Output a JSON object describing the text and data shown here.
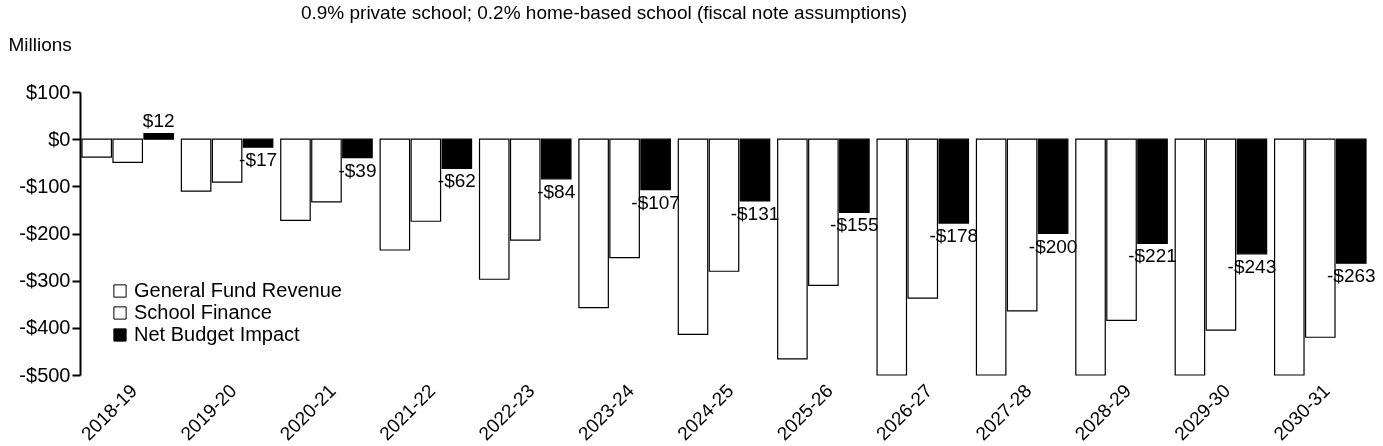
{
  "chart_data": {
    "type": "bar",
    "title": "0.9% private school; 0.2% home-based school (fiscal note assumptions)",
    "ylabel": "Millions",
    "categories": [
      "2018-19",
      "2019-20",
      "2020-21",
      "2021-22",
      "2022-23",
      "2023-24",
      "2024-25",
      "2025-26",
      "2026-27",
      "2027-28",
      "2028-29",
      "2029-30",
      "2030-31"
    ],
    "series": [
      {
        "name": "General Fund Revenue",
        "color": "#ffffff",
        "values": [
          -38,
          -110,
          -172,
          -235,
          -297,
          -357,
          -414,
          -466,
          -500,
          -500,
          -500,
          -500,
          -500
        ]
      },
      {
        "name": "School Finance",
        "color": "#ffffff",
        "values": [
          -49,
          -91,
          -133,
          -174,
          -214,
          -251,
          -280,
          -310,
          -337,
          -364,
          -384,
          -405,
          -420
        ]
      },
      {
        "name": "Net Budget Impact",
        "color": "#000000",
        "values": [
          12,
          -17,
          -39,
          -62,
          -84,
          -107,
          -131,
          -155,
          -178,
          -200,
          -221,
          -243,
          -263
        ],
        "value_labels": [
          "$12",
          "-$17",
          "-$39",
          "-$62",
          "-$84",
          "-$107",
          "-$131",
          "-$155",
          "-$178",
          "-$200",
          "-$221",
          "-$243",
          "-$263"
        ]
      }
    ],
    "ylim": [
      -500,
      100
    ],
    "yticks": [
      {
        "value": 100,
        "label": "$100"
      },
      {
        "value": 0,
        "label": "$0"
      },
      {
        "value": -100,
        "label": "-$100"
      },
      {
        "value": -200,
        "label": "-$200"
      },
      {
        "value": -300,
        "label": "-$300"
      },
      {
        "value": -400,
        "label": "-$400"
      },
      {
        "value": -500,
        "label": "-$500"
      }
    ],
    "grid": false,
    "legend": "bottom left"
  }
}
